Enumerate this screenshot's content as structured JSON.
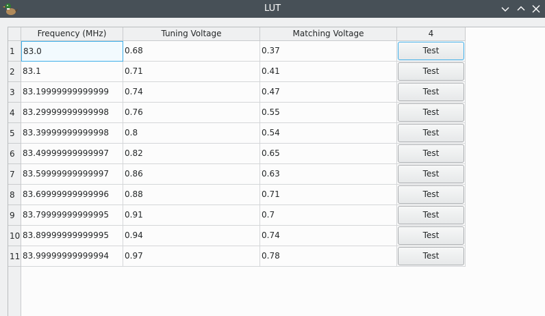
{
  "window": {
    "title": "LUT",
    "app_icon": "duck-icon",
    "controls": [
      "minimize-icon",
      "maximize-icon",
      "close-icon"
    ]
  },
  "table": {
    "columns": [
      "Frequency (MHz)",
      "Tuning Voltage",
      "Matching Voltage",
      "4"
    ],
    "rows": [
      {
        "num": "1",
        "freq": "83.0",
        "tuning": "0.68",
        "matching": "0.37",
        "action": "Test"
      },
      {
        "num": "2",
        "freq": "83.1",
        "tuning": "0.71",
        "matching": "0.41",
        "action": "Test"
      },
      {
        "num": "3",
        "freq": "83.19999999999999",
        "tuning": "0.74",
        "matching": "0.47",
        "action": "Test"
      },
      {
        "num": "4",
        "freq": "83.29999999999998",
        "tuning": "0.76",
        "matching": "0.55",
        "action": "Test"
      },
      {
        "num": "5",
        "freq": "83.39999999999998",
        "tuning": "0.8",
        "matching": "0.54",
        "action": "Test"
      },
      {
        "num": "6",
        "freq": "83.49999999999997",
        "tuning": "0.82",
        "matching": "0.65",
        "action": "Test"
      },
      {
        "num": "7",
        "freq": "83.59999999999997",
        "tuning": "0.86",
        "matching": "0.63",
        "action": "Test"
      },
      {
        "num": "8",
        "freq": "83.69999999999996",
        "tuning": "0.88",
        "matching": "0.71",
        "action": "Test"
      },
      {
        "num": "9",
        "freq": "83.79999999999995",
        "tuning": "0.91",
        "matching": "0.7",
        "action": "Test"
      },
      {
        "num": "10",
        "freq": "83.89999999999995",
        "tuning": "0.94",
        "matching": "0.74",
        "action": "Test"
      },
      {
        "num": "11",
        "freq": "83.99999999999994",
        "tuning": "0.97",
        "matching": "0.78",
        "action": "Test"
      }
    ]
  },
  "colors": {
    "titlebar": "#475057",
    "accent": "#3daee9",
    "window_bg": "#eff0f1"
  }
}
